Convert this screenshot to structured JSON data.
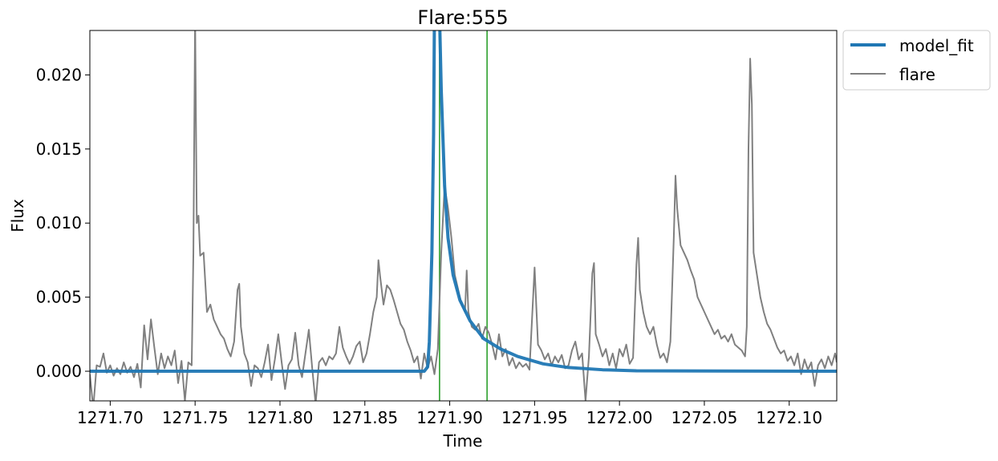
{
  "chart_data": {
    "type": "line",
    "title": "Flare:555",
    "xlabel": "Time",
    "ylabel": "Flux",
    "xlim": [
      1271.688,
      1272.128
    ],
    "ylim": [
      -0.002,
      0.023
    ],
    "xticks": [
      1271.7,
      1271.75,
      1271.8,
      1271.85,
      1271.9,
      1271.95,
      1272.0,
      1272.05,
      1272.1
    ],
    "xtick_labels": [
      "1271.70",
      "1271.75",
      "1271.80",
      "1271.85",
      "1271.90",
      "1271.95",
      "1272.00",
      "1272.05",
      "1272.10"
    ],
    "yticks": [
      0.0,
      0.005,
      0.01,
      0.015,
      0.02
    ],
    "ytick_labels": [
      "0.000",
      "0.005",
      "0.010",
      "0.015",
      "0.020"
    ],
    "grid": false,
    "legend": {
      "placement": "outside-top-right",
      "entries": [
        "model_fit",
        "flare"
      ]
    },
    "vlines": {
      "x": [
        1271.894,
        1271.922
      ],
      "color": "#2ca02c"
    },
    "series": [
      {
        "name": "model_fit",
        "color": "#1f77b4",
        "points": [
          [
            1271.688,
            0.0
          ],
          [
            1271.885,
            0.0
          ],
          [
            1271.887,
            0.0003
          ],
          [
            1271.888,
            0.002
          ],
          [
            1271.8895,
            0.008
          ],
          [
            1271.8905,
            0.016
          ],
          [
            1271.891,
            0.024
          ],
          [
            1271.894,
            0.024
          ],
          [
            1271.895,
            0.019
          ],
          [
            1271.897,
            0.0125
          ],
          [
            1271.899,
            0.009
          ],
          [
            1271.902,
            0.0065
          ],
          [
            1271.906,
            0.0048
          ],
          [
            1271.912,
            0.0034
          ],
          [
            1271.92,
            0.0022
          ],
          [
            1271.93,
            0.0015
          ],
          [
            1271.94,
            0.001
          ],
          [
            1271.955,
            0.0005
          ],
          [
            1271.97,
            0.00025
          ],
          [
            1271.99,
            0.0001
          ],
          [
            1272.01,
            3e-05
          ],
          [
            1272.128,
            0.0
          ]
        ]
      },
      {
        "name": "flare",
        "color": "#808080",
        "points": [
          [
            1271.688,
            -0.0002
          ],
          [
            1271.69,
            -0.0025
          ],
          [
            1271.692,
            0.0004
          ],
          [
            1271.694,
            0.0003
          ],
          [
            1271.696,
            0.0012
          ],
          [
            1271.698,
            -0.0001
          ],
          [
            1271.7,
            0.0004
          ],
          [
            1271.702,
            -0.0003
          ],
          [
            1271.704,
            0.0002
          ],
          [
            1271.706,
            -0.0002
          ],
          [
            1271.708,
            0.0006
          ],
          [
            1271.71,
            -0.0001
          ],
          [
            1271.712,
            0.0003
          ],
          [
            1271.714,
            -0.0004
          ],
          [
            1271.716,
            0.0005
          ],
          [
            1271.718,
            -0.0011
          ],
          [
            1271.72,
            0.0031
          ],
          [
            1271.722,
            0.0008
          ],
          [
            1271.724,
            0.0035
          ],
          [
            1271.726,
            0.0016
          ],
          [
            1271.728,
            -0.0002
          ],
          [
            1271.73,
            0.0012
          ],
          [
            1271.732,
            0.0002
          ],
          [
            1271.734,
            0.001
          ],
          [
            1271.736,
            0.0004
          ],
          [
            1271.738,
            0.0014
          ],
          [
            1271.74,
            -0.0008
          ],
          [
            1271.742,
            0.0007
          ],
          [
            1271.744,
            -0.002
          ],
          [
            1271.746,
            0.0006
          ],
          [
            1271.748,
            0.0004
          ],
          [
            1271.749,
            0.008
          ],
          [
            1271.75,
            0.024
          ],
          [
            1271.751,
            0.01
          ],
          [
            1271.752,
            0.0105
          ],
          [
            1271.753,
            0.0078
          ],
          [
            1271.755,
            0.008
          ],
          [
            1271.757,
            0.004
          ],
          [
            1271.759,
            0.0045
          ],
          [
            1271.761,
            0.0035
          ],
          [
            1271.763,
            0.003
          ],
          [
            1271.765,
            0.0025
          ],
          [
            1271.767,
            0.0022
          ],
          [
            1271.769,
            0.0015
          ],
          [
            1271.771,
            0.001
          ],
          [
            1271.773,
            0.002
          ],
          [
            1271.775,
            0.0055
          ],
          [
            1271.776,
            0.0059
          ],
          [
            1271.777,
            0.003
          ],
          [
            1271.779,
            0.0012
          ],
          [
            1271.781,
            0.0006
          ],
          [
            1271.783,
            -0.001
          ],
          [
            1271.785,
            0.0004
          ],
          [
            1271.787,
            0.0002
          ],
          [
            1271.789,
            -0.0004
          ],
          [
            1271.791,
            0.0006
          ],
          [
            1271.793,
            0.0018
          ],
          [
            1271.795,
            -0.0006
          ],
          [
            1271.797,
            0.0008
          ],
          [
            1271.799,
            0.0025
          ],
          [
            1271.801,
            0.0006
          ],
          [
            1271.803,
            -0.0012
          ],
          [
            1271.805,
            0.0004
          ],
          [
            1271.807,
            0.0008
          ],
          [
            1271.809,
            0.0026
          ],
          [
            1271.811,
            0.0004
          ],
          [
            1271.813,
            -0.0004
          ],
          [
            1271.815,
            0.0012
          ],
          [
            1271.817,
            0.0028
          ],
          [
            1271.819,
            0.0002
          ],
          [
            1271.821,
            -0.0022
          ],
          [
            1271.823,
            0.0006
          ],
          [
            1271.825,
            0.0009
          ],
          [
            1271.827,
            0.0004
          ],
          [
            1271.829,
            0.001
          ],
          [
            1271.831,
            0.0008
          ],
          [
            1271.833,
            0.0012
          ],
          [
            1271.835,
            0.003
          ],
          [
            1271.837,
            0.0016
          ],
          [
            1271.839,
            0.001
          ],
          [
            1271.841,
            0.0005
          ],
          [
            1271.843,
            0.001
          ],
          [
            1271.845,
            0.0017
          ],
          [
            1271.847,
            0.002
          ],
          [
            1271.849,
            0.0006
          ],
          [
            1271.851,
            0.0012
          ],
          [
            1271.853,
            0.0025
          ],
          [
            1271.855,
            0.004
          ],
          [
            1271.857,
            0.005
          ],
          [
            1271.858,
            0.0075
          ],
          [
            1271.859,
            0.0064
          ],
          [
            1271.861,
            0.0045
          ],
          [
            1271.863,
            0.0058
          ],
          [
            1271.865,
            0.0055
          ],
          [
            1271.867,
            0.0048
          ],
          [
            1271.869,
            0.004
          ],
          [
            1271.871,
            0.0032
          ],
          [
            1271.873,
            0.0028
          ],
          [
            1271.875,
            0.002
          ],
          [
            1271.877,
            0.0014
          ],
          [
            1271.879,
            0.0006
          ],
          [
            1271.881,
            0.001
          ],
          [
            1271.883,
            -0.0005
          ],
          [
            1271.885,
            0.0012
          ],
          [
            1271.887,
            0.0002
          ],
          [
            1271.889,
            0.001
          ],
          [
            1271.891,
            -0.0002
          ],
          [
            1271.893,
            0.0015
          ],
          [
            1271.895,
            0.008
          ],
          [
            1271.897,
            0.0125
          ],
          [
            1271.899,
            0.011
          ],
          [
            1271.901,
            0.009
          ],
          [
            1271.903,
            0.0065
          ],
          [
            1271.905,
            0.0055
          ],
          [
            1271.907,
            0.0045
          ],
          [
            1271.909,
            0.004
          ],
          [
            1271.91,
            0.0068
          ],
          [
            1271.911,
            0.004
          ],
          [
            1271.913,
            0.003
          ],
          [
            1271.915,
            0.0028
          ],
          [
            1271.917,
            0.0032
          ],
          [
            1271.919,
            0.0022
          ],
          [
            1271.921,
            0.003
          ],
          [
            1271.923,
            0.0026
          ],
          [
            1271.925,
            0.0018
          ],
          [
            1271.927,
            0.0008
          ],
          [
            1271.929,
            0.0025
          ],
          [
            1271.931,
            0.001
          ],
          [
            1271.933,
            0.0015
          ],
          [
            1271.935,
            0.0004
          ],
          [
            1271.937,
            0.0009
          ],
          [
            1271.939,
            0.0002
          ],
          [
            1271.941,
            0.0006
          ],
          [
            1271.943,
            0.0003
          ],
          [
            1271.945,
            0.0005
          ],
          [
            1271.947,
            0.0001
          ],
          [
            1271.95,
            0.007
          ],
          [
            1271.952,
            0.0018
          ],
          [
            1271.954,
            0.0014
          ],
          [
            1271.956,
            0.0008
          ],
          [
            1271.958,
            0.0012
          ],
          [
            1271.96,
            0.0004
          ],
          [
            1271.962,
            0.001
          ],
          [
            1271.964,
            0.0006
          ],
          [
            1271.966,
            0.0011
          ],
          [
            1271.968,
            0.0002
          ],
          [
            1271.97,
            0.0004
          ],
          [
            1271.972,
            0.0014
          ],
          [
            1271.974,
            0.002
          ],
          [
            1271.976,
            0.0008
          ],
          [
            1271.978,
            0.0012
          ],
          [
            1271.98,
            -0.002
          ],
          [
            1271.982,
            0.001
          ],
          [
            1271.984,
            0.0066
          ],
          [
            1271.985,
            0.0073
          ],
          [
            1271.986,
            0.0025
          ],
          [
            1271.988,
            0.0018
          ],
          [
            1271.99,
            0.001
          ],
          [
            1271.992,
            0.0015
          ],
          [
            1271.994,
            0.0004
          ],
          [
            1271.996,
            0.0012
          ],
          [
            1271.998,
            0.0002
          ],
          [
            1272.0,
            0.0015
          ],
          [
            1272.002,
            0.001
          ],
          [
            1272.004,
            0.0018
          ],
          [
            1272.006,
            0.0005
          ],
          [
            1272.008,
            0.0009
          ],
          [
            1272.01,
            0.0072
          ],
          [
            1272.011,
            0.009
          ],
          [
            1272.012,
            0.0055
          ],
          [
            1272.014,
            0.004
          ],
          [
            1272.016,
            0.003
          ],
          [
            1272.018,
            0.0025
          ],
          [
            1272.02,
            0.003
          ],
          [
            1272.022,
            0.0018
          ],
          [
            1272.024,
            0.0009
          ],
          [
            1272.026,
            0.0012
          ],
          [
            1272.028,
            0.0006
          ],
          [
            1272.03,
            0.002
          ],
          [
            1272.032,
            0.009
          ],
          [
            1272.033,
            0.0132
          ],
          [
            1272.034,
            0.011
          ],
          [
            1272.036,
            0.0085
          ],
          [
            1272.038,
            0.008
          ],
          [
            1272.04,
            0.0075
          ],
          [
            1272.042,
            0.0068
          ],
          [
            1272.044,
            0.0062
          ],
          [
            1272.046,
            0.005
          ],
          [
            1272.048,
            0.0045
          ],
          [
            1272.05,
            0.004
          ],
          [
            1272.052,
            0.0035
          ],
          [
            1272.054,
            0.003
          ],
          [
            1272.056,
            0.0025
          ],
          [
            1272.058,
            0.0028
          ],
          [
            1272.06,
            0.0022
          ],
          [
            1272.062,
            0.0024
          ],
          [
            1272.064,
            0.002
          ],
          [
            1272.066,
            0.0025
          ],
          [
            1272.068,
            0.0018
          ],
          [
            1272.07,
            0.0016
          ],
          [
            1272.072,
            0.0014
          ],
          [
            1272.074,
            0.001
          ],
          [
            1272.075,
            0.003
          ],
          [
            1272.076,
            0.015
          ],
          [
            1272.077,
            0.0211
          ],
          [
            1272.078,
            0.018
          ],
          [
            1272.079,
            0.008
          ],
          [
            1272.081,
            0.0065
          ],
          [
            1272.083,
            0.005
          ],
          [
            1272.085,
            0.004
          ],
          [
            1272.087,
            0.0032
          ],
          [
            1272.089,
            0.0028
          ],
          [
            1272.091,
            0.0022
          ],
          [
            1272.093,
            0.0016
          ],
          [
            1272.095,
            0.0012
          ],
          [
            1272.097,
            0.0014
          ],
          [
            1272.099,
            0.0007
          ],
          [
            1272.101,
            0.001
          ],
          [
            1272.103,
            0.0004
          ],
          [
            1272.105,
            0.0012
          ],
          [
            1272.107,
            -0.0002
          ],
          [
            1272.109,
            0.0008
          ],
          [
            1272.111,
            0.0001
          ],
          [
            1272.113,
            0.0006
          ],
          [
            1272.115,
            -0.001
          ],
          [
            1272.117,
            0.0004
          ],
          [
            1272.119,
            0.0008
          ],
          [
            1272.121,
            0.0002
          ],
          [
            1272.123,
            0.001
          ],
          [
            1272.125,
            0.0004
          ],
          [
            1272.127,
            0.0012
          ],
          [
            1272.128,
            0.0006
          ]
        ]
      }
    ]
  }
}
